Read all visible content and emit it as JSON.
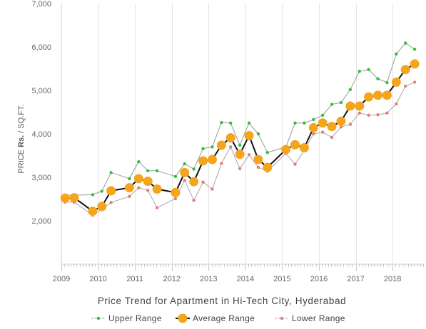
{
  "chart_data": {
    "type": "line",
    "title": "",
    "xlabel": "Price Trend for Apartment in Hi-Tech City, Hyderabad",
    "ylabel": {
      "prefix": "PRICE ",
      "emphasis": "Rs.",
      "suffix": " / SQ.FT."
    },
    "ylim": [
      1000,
      7000
    ],
    "yticks": [
      2000,
      3000,
      4000,
      5000,
      6000,
      7000
    ],
    "ytick_labels": [
      "2,000",
      "3,000",
      "4,000",
      "5,000",
      "6,000",
      "7,000"
    ],
    "xlim": [
      2009.0,
      2018.85
    ],
    "xticks": [
      2009,
      2010,
      2011,
      2012,
      2013,
      2014,
      2015,
      2016,
      2017,
      2018
    ],
    "xtick_labels": [
      "2009",
      "2010",
      "2011",
      "2012",
      "2013",
      "2014",
      "2015",
      "2016",
      "2017",
      "2018"
    ],
    "grid": "vertical",
    "legend_position": "bottom",
    "x": [
      2009.1,
      2009.35,
      2009.85,
      2010.1,
      2010.35,
      2010.85,
      2011.1,
      2011.35,
      2011.6,
      2012.1,
      2012.35,
      2012.6,
      2012.85,
      2013.1,
      2013.35,
      2013.6,
      2013.85,
      2014.1,
      2014.35,
      2014.6,
      2015.1,
      2015.35,
      2015.6,
      2015.85,
      2016.1,
      2016.35,
      2016.6,
      2016.85,
      2017.1,
      2017.35,
      2017.6,
      2017.85,
      2018.1,
      2018.35,
      2018.6
    ],
    "series": [
      {
        "name": "Upper Range",
        "color": "#2ec13f",
        "marker_size": 2.2,
        "line_color": "#9a9a9a",
        "values": [
          2590,
          2590,
          2600,
          2680,
          3110,
          2970,
          3360,
          3150,
          3150,
          3020,
          3310,
          3190,
          3660,
          3700,
          4260,
          4250,
          3740,
          4250,
          4000,
          3570,
          3700,
          4250,
          4250,
          4330,
          4430,
          4680,
          4720,
          5020,
          5440,
          5480,
          5270,
          5180,
          5840,
          6090,
          5950
        ]
      },
      {
        "name": "Average Range",
        "color": "#f4a51c",
        "marker_size": 6.5,
        "line_color": "#111111",
        "values": [
          2520,
          2530,
          2220,
          2330,
          2690,
          2760,
          2970,
          2910,
          2730,
          2650,
          3110,
          2900,
          3380,
          3410,
          3740,
          3910,
          3530,
          3960,
          3410,
          3230,
          3640,
          3750,
          3680,
          4140,
          4250,
          4170,
          4290,
          4640,
          4640,
          4850,
          4890,
          4890,
          5190,
          5480,
          5610
        ]
      },
      {
        "name": "Lower Range",
        "color": "#e07f72",
        "marker_size": 2.2,
        "line_color": "#a8a8a8",
        "values": [
          2430,
          2430,
          2130,
          2260,
          2420,
          2560,
          2760,
          2700,
          2300,
          2510,
          2930,
          2470,
          2890,
          2730,
          3320,
          3700,
          3200,
          3520,
          3230,
          3140,
          3550,
          3300,
          3620,
          4000,
          4040,
          3920,
          4160,
          4220,
          4480,
          4430,
          4440,
          4480,
          4690,
          5100,
          5190
        ]
      }
    ]
  }
}
